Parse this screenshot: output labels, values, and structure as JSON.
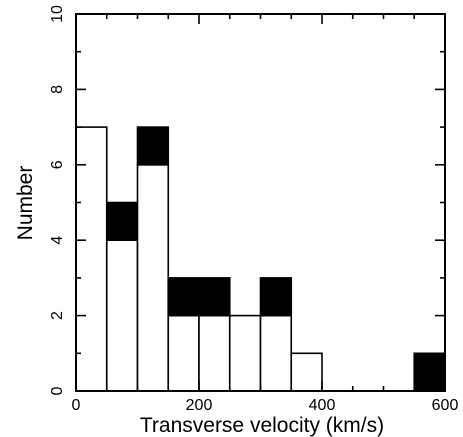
{
  "chart_data": {
    "type": "bar",
    "xlabel": "Transverse velocity (km/s)",
    "ylabel": "Number",
    "xlim": [
      0,
      600
    ],
    "ylim": [
      0,
      10
    ],
    "x_ticks": [
      "0",
      "200",
      "400",
      "600"
    ],
    "y_ticks": [
      "0",
      "2",
      "4",
      "6",
      "8",
      "10"
    ],
    "bin_width": 50,
    "bins": [
      0,
      50,
      100,
      150,
      200,
      250,
      300,
      350,
      400,
      450,
      500,
      550
    ],
    "series": [
      {
        "fill": "white",
        "values": [
          7,
          4,
          6,
          2,
          2,
          2,
          2,
          1,
          0,
          0,
          0,
          0
        ]
      },
      {
        "fill": "black",
        "values": [
          0,
          1,
          1,
          1,
          1,
          0,
          1,
          0,
          0,
          0,
          0,
          1
        ]
      }
    ],
    "grid": false,
    "legend": "none"
  }
}
